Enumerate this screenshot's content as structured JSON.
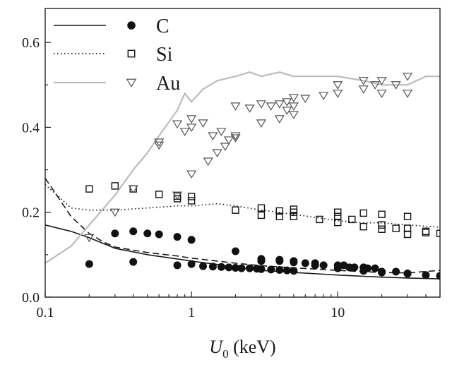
{
  "chart_data": {
    "type": "scatter",
    "xlabel": {
      "symbol": "U",
      "subscript": "0",
      "unit": " (keV)"
    },
    "ylabel": "",
    "x_scale": "log",
    "xlim": [
      0.1,
      50
    ],
    "ylim": [
      0.0,
      0.68
    ],
    "x_ticks": [
      {
        "value": 0.1,
        "label": "0.1"
      },
      {
        "value": 1,
        "label": "1"
      },
      {
        "value": 10,
        "label": "10"
      }
    ],
    "y_ticks": [
      {
        "value": 0.0,
        "label": "0.0"
      },
      {
        "value": 0.2,
        "label": "0.2"
      },
      {
        "value": 0.4,
        "label": "0.4"
      },
      {
        "value": 0.6,
        "label": "0.6"
      }
    ],
    "grid": false,
    "legend_position": "top-left",
    "legend": [
      {
        "label": "C",
        "line": "solid",
        "line_color": "#1a1a1a",
        "marker": "filled-circle"
      },
      {
        "label": "Si",
        "line": "dotted",
        "line_color": "#1a1a1a",
        "marker": "open-square"
      },
      {
        "label": "Au",
        "line": "solid",
        "line_color": "#bcbcbc",
        "marker": "open-triangle-down"
      }
    ],
    "lines": [
      {
        "series": "C",
        "style": "solid",
        "color": "#1a1a1a",
        "x": [
          0.1,
          0.15,
          0.2,
          0.3,
          0.5,
          0.8,
          1,
          1.5,
          2,
          3,
          5,
          8,
          10,
          15,
          20,
          30,
          50
        ],
        "y": [
          0.17,
          0.155,
          0.14,
          0.115,
          0.1,
          0.09,
          0.085,
          0.077,
          0.07,
          0.063,
          0.058,
          0.054,
          0.052,
          0.049,
          0.047,
          0.045,
          0.043
        ]
      },
      {
        "series": "C",
        "style": "dashed",
        "color": "#1a1a1a",
        "x": [
          0.1,
          0.12,
          0.15,
          0.2,
          0.25,
          0.3,
          0.5,
          0.8,
          1,
          1.5,
          2,
          3,
          5,
          8,
          10,
          15,
          20,
          30,
          50
        ],
        "y": [
          0.28,
          0.24,
          0.19,
          0.15,
          0.13,
          0.118,
          0.105,
          0.097,
          0.092,
          0.085,
          0.08,
          0.074,
          0.069,
          0.065,
          0.063,
          0.06,
          0.058,
          0.057,
          0.063
        ]
      },
      {
        "series": "Si",
        "style": "dotted",
        "color": "#1a1a1a",
        "x": [
          0.1,
          0.13,
          0.15,
          0.2,
          0.3,
          0.5,
          0.8,
          1,
          1.5,
          2,
          3,
          5,
          8,
          10,
          15,
          20,
          30,
          50
        ],
        "y": [
          0.265,
          0.23,
          0.21,
          0.205,
          0.205,
          0.21,
          0.215,
          0.215,
          0.22,
          0.215,
          0.205,
          0.195,
          0.185,
          0.18,
          0.175,
          0.175,
          0.17,
          0.165
        ]
      },
      {
        "series": "Au",
        "style": "solid",
        "color": "#bcbcbc",
        "x": [
          0.1,
          0.15,
          0.2,
          0.3,
          0.4,
          0.5,
          0.6,
          0.8,
          0.9,
          1,
          1.2,
          1.5,
          2,
          2.5,
          3,
          4,
          5,
          7,
          10,
          15,
          20,
          30,
          40,
          50
        ],
        "y": [
          0.08,
          0.12,
          0.17,
          0.24,
          0.3,
          0.34,
          0.38,
          0.44,
          0.48,
          0.46,
          0.49,
          0.51,
          0.52,
          0.53,
          0.52,
          0.53,
          0.52,
          0.52,
          0.52,
          0.51,
          0.5,
          0.5,
          0.52,
          0.52
        ]
      }
    ],
    "scatter": [
      {
        "series": "C",
        "marker": "filled-circle",
        "x": [
          0.2,
          0.3,
          0.4,
          0.5,
          0.6,
          0.8,
          1.0,
          0.4,
          0.8,
          1.0,
          1.2,
          1.4,
          1.6,
          1.8,
          2.0,
          2.2,
          2.5,
          2.8,
          3.0,
          3.5,
          4.0,
          4.5,
          5.0,
          3.0,
          4.0,
          5.0,
          6.0,
          7.0,
          8.0,
          10,
          11,
          12,
          13,
          15,
          16,
          18,
          20,
          25,
          30,
          2.0,
          3.0,
          4.0,
          5.0,
          7.0,
          10,
          15,
          20,
          30,
          40,
          50
        ],
        "y": [
          0.078,
          0.15,
          0.155,
          0.15,
          0.148,
          0.142,
          0.135,
          0.083,
          0.075,
          0.078,
          0.073,
          0.072,
          0.071,
          0.07,
          0.069,
          0.068,
          0.068,
          0.067,
          0.066,
          0.065,
          0.064,
          0.063,
          0.062,
          0.085,
          0.085,
          0.082,
          0.08,
          0.08,
          0.075,
          0.075,
          0.075,
          0.07,
          0.07,
          0.07,
          0.068,
          0.068,
          0.06,
          0.06,
          0.056,
          0.108,
          0.09,
          0.088,
          0.085,
          0.075,
          0.068,
          0.062,
          0.058,
          0.055,
          0.052,
          0.05
        ]
      },
      {
        "series": "Si",
        "marker": "open-square",
        "x": [
          0.2,
          0.3,
          0.4,
          0.6,
          0.8,
          0.8,
          1.0,
          1.0,
          2.0,
          3.0,
          3.0,
          4.0,
          4.0,
          5.0,
          5.0,
          5.0,
          7.5,
          10,
          10,
          10,
          12.5,
          15,
          15,
          20,
          20,
          20,
          25,
          30,
          30,
          30,
          40,
          40,
          50
        ],
        "y": [
          0.255,
          0.262,
          0.255,
          0.242,
          0.232,
          0.238,
          0.227,
          0.237,
          0.205,
          0.21,
          0.193,
          0.203,
          0.19,
          0.2,
          0.19,
          0.207,
          0.183,
          0.2,
          0.19,
          0.176,
          0.183,
          0.198,
          0.166,
          0.195,
          0.17,
          0.16,
          0.162,
          0.19,
          0.162,
          0.148,
          0.155,
          0.152,
          0.15
        ]
      },
      {
        "series": "Au",
        "marker": "open-triangle-down",
        "x": [
          0.2,
          0.3,
          0.4,
          0.6,
          0.6,
          0.8,
          0.8,
          0.9,
          1.0,
          1.0,
          1.0,
          1.3,
          1.5,
          1.7,
          2.0,
          2.0,
          2.5,
          3.0,
          3.0,
          3.5,
          4.0,
          4.0,
          4.5,
          4.5,
          5.0,
          5.0,
          5.0,
          6.0,
          8.0,
          10,
          10,
          15,
          15,
          18,
          20,
          20,
          25,
          30,
          30,
          1.2,
          1.4,
          1.6,
          1.8,
          2.0
        ],
        "y": [
          0.14,
          0.2,
          0.255,
          0.358,
          0.365,
          0.408,
          0.24,
          0.39,
          0.4,
          0.42,
          0.29,
          0.32,
          0.34,
          0.355,
          0.375,
          0.45,
          0.445,
          0.455,
          0.41,
          0.45,
          0.455,
          0.42,
          0.46,
          0.44,
          0.47,
          0.45,
          0.43,
          0.468,
          0.475,
          0.48,
          0.5,
          0.49,
          0.51,
          0.5,
          0.48,
          0.51,
          0.5,
          0.48,
          0.52,
          0.41,
          0.38,
          0.39,
          0.37,
          0.38
        ]
      }
    ]
  }
}
